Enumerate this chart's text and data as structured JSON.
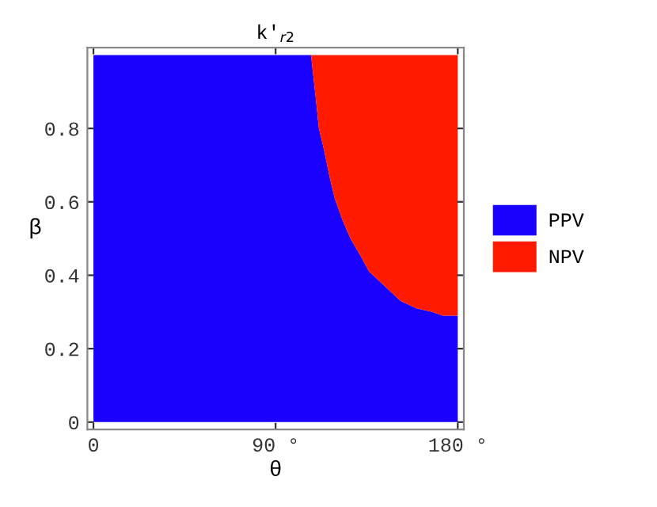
{
  "chart_data": {
    "type": "area",
    "stacked": true,
    "title": "k′$_{r2}$",
    "xlabel": "θ",
    "ylabel": "β",
    "x": [
      0,
      107.5,
      110.1,
      111.4,
      114.0,
      116.6,
      119.2,
      123.1,
      127.0,
      132.3,
      136.2,
      144.0,
      151.8,
      159.7,
      167.5,
      172.7,
      180
    ],
    "series": [
      {
        "name": "PPV",
        "color": "#1a00ff",
        "values": [
          1,
          1,
          0.87,
          0.8,
          0.74,
          0.67,
          0.61,
          0.55,
          0.5,
          0.45,
          0.41,
          0.37,
          0.33,
          0.31,
          0.3,
          0.29,
          0.29
        ]
      },
      {
        "name": "NPV",
        "color": "#ff1a00",
        "values": [
          0,
          0,
          0.13,
          0.2,
          0.26,
          0.33,
          0.39,
          0.45,
          0.5,
          0.55,
          0.59,
          0.63,
          0.67,
          0.69,
          0.7,
          0.71,
          0.71
        ]
      }
    ],
    "xlim": [
      -3,
      183
    ],
    "ylim": [
      -0.02,
      1.02
    ],
    "xticks": [
      0,
      {
        "value": 90,
        "label": "90 °"
      },
      {
        "value": 180,
        "label": "180 °"
      }
    ],
    "yticks": [
      0,
      0.2,
      0.4,
      0.6,
      0.8
    ],
    "legend": "right",
    "grid": false
  }
}
